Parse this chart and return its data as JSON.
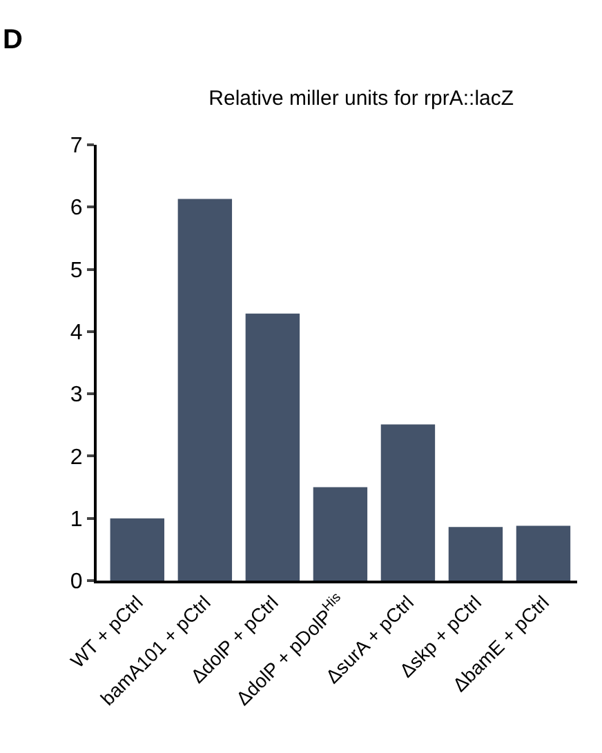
{
  "chart_data": {
    "type": "bar",
    "title": "Relative miller units for rprA::lacZ",
    "annotations": [
      "D"
    ],
    "categories": [
      "WT + pCtrl",
      "bamA101 + pCtrl",
      "ΔdolP + pCtrl",
      "ΔdolP + pDolP$^{His}$",
      "ΔsurA + pCtrl",
      "Δskp + pCtrl",
      "ΔbamE + pCtrl"
    ],
    "values": [
      1.0,
      6.13,
      4.29,
      1.5,
      2.51,
      0.86,
      0.88
    ],
    "color": "#44536a",
    "ylim": [
      0,
      7
    ],
    "yticks": [
      0,
      1,
      2,
      3,
      4,
      5,
      6,
      7
    ]
  }
}
